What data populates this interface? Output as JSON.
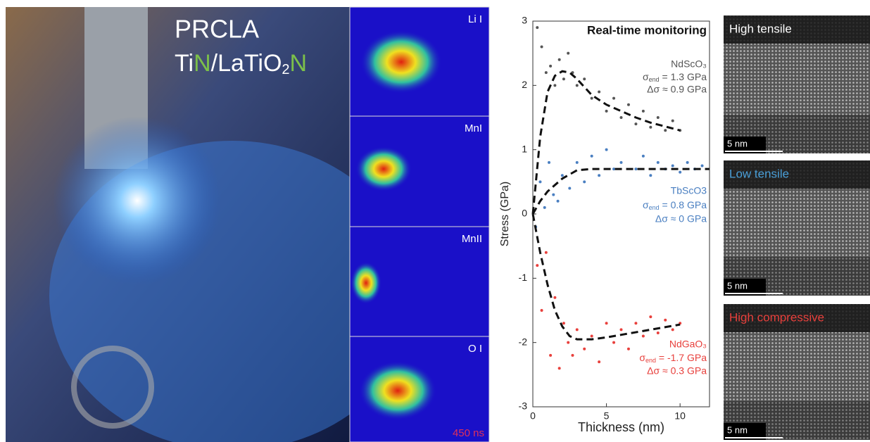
{
  "photo": {
    "line1": "PRCLA",
    "line2": [
      "Ti",
      "N",
      "/LaTiO",
      "2",
      "N"
    ]
  },
  "plumes": {
    "labels": [
      "Li I",
      "MnI",
      "MnII",
      "O I"
    ],
    "time": "450 ns"
  },
  "tem": {
    "labels": [
      "High tensile",
      "Low tensile",
      "High compressive"
    ],
    "scale": [
      "5 nm",
      "5 nm",
      "5 nm"
    ]
  },
  "chart_data": {
    "type": "scatter",
    "title": "Real-time monitoring",
    "x_label": "Thickness (nm)",
    "y_label": "Stress (GPa)",
    "xlim": [
      0,
      12
    ],
    "ylim": [
      -3,
      3
    ],
    "xticks": [
      0,
      5,
      10
    ],
    "yticks": [
      -3,
      -2,
      -1,
      0,
      1,
      2,
      3
    ],
    "series": [
      {
        "name": "NdScO₃",
        "color": "#555555",
        "x": [
          0.3,
          0.6,
          0.9,
          1.2,
          1.5,
          1.8,
          2.1,
          2.4,
          2.7,
          3.0,
          3.5,
          4,
          4.5,
          5,
          5.5,
          6,
          6.5,
          7,
          7.5,
          8,
          8.5,
          9,
          9.5,
          10
        ],
        "values": [
          2.9,
          2.6,
          2.2,
          2.3,
          2.0,
          2.4,
          2.1,
          2.5,
          2.2,
          2.0,
          2.1,
          1.8,
          1.9,
          1.6,
          1.8,
          1.5,
          1.7,
          1.4,
          1.6,
          1.35,
          1.5,
          1.3,
          1.45,
          1.3
        ],
        "fit_x": [
          0,
          0.5,
          1,
          1.5,
          2,
          2.5,
          3,
          4,
          5,
          6,
          7,
          8,
          9,
          10
        ],
        "fit_values": [
          0,
          1.2,
          1.9,
          2.15,
          2.22,
          2.2,
          2.1,
          1.85,
          1.7,
          1.6,
          1.5,
          1.42,
          1.36,
          1.3
        ],
        "annotation": [
          {
            "symbol": "σ",
            "sub": "end",
            "rest": " = 1.3 GPa"
          },
          "Δσ ≈ 0.9 GPa"
        ]
      },
      {
        "name": "TbScO3",
        "color": "#4a7fc1",
        "x": [
          0.2,
          0.5,
          0.8,
          1.1,
          1.4,
          1.7,
          2,
          2.5,
          3,
          3.5,
          4,
          4.5,
          5,
          5.5,
          6,
          7,
          7.5,
          8,
          8.5,
          9,
          9.5,
          10,
          10.5,
          11,
          11.5
        ],
        "values": [
          -0.2,
          0.5,
          0.1,
          0.8,
          0.3,
          0.2,
          0.6,
          0.4,
          0.8,
          0.5,
          0.9,
          0.6,
          1.0,
          0.7,
          0.8,
          0.7,
          0.9,
          0.6,
          0.8,
          0.7,
          0.75,
          0.65,
          0.8,
          0.7,
          0.75
        ],
        "fit_x": [
          0,
          0.5,
          1,
          2,
          3,
          4,
          5,
          6,
          8,
          10,
          12
        ],
        "fit_values": [
          0,
          0.2,
          0.35,
          0.55,
          0.68,
          0.7,
          0.7,
          0.7,
          0.7,
          0.7,
          0.7
        ],
        "annotation": [
          {
            "symbol": "σ",
            "sub": "end",
            "rest": " = 0.8 GPa"
          },
          "Δσ ≈ 0 GPa"
        ]
      },
      {
        "name": "NdGaO₃",
        "color": "#e8403c",
        "x": [
          0.3,
          0.6,
          0.9,
          1.2,
          1.5,
          1.8,
          2.1,
          2.4,
          2.7,
          3,
          3.5,
          4,
          4.5,
          5,
          5.5,
          6,
          6.5,
          7,
          7.5,
          8,
          8.5,
          9,
          9.5,
          10
        ],
        "values": [
          -0.8,
          -1.5,
          -0.6,
          -2.2,
          -1.3,
          -2.4,
          -1.7,
          -2.0,
          -2.2,
          -1.8,
          -2.1,
          -1.9,
          -2.3,
          -1.7,
          -2.0,
          -1.8,
          -2.1,
          -1.7,
          -1.9,
          -1.6,
          -1.85,
          -1.65,
          -1.8,
          -1.7
        ],
        "fit_x": [
          0,
          0.5,
          1,
          1.5,
          2,
          2.5,
          3,
          4,
          5,
          6,
          7,
          8,
          9,
          10
        ],
        "fit_values": [
          0,
          -0.6,
          -1.1,
          -1.5,
          -1.75,
          -1.9,
          -1.95,
          -1.95,
          -1.92,
          -1.88,
          -1.84,
          -1.8,
          -1.76,
          -1.72
        ],
        "annotation": [
          {
            "symbol": "σ",
            "sub": "end",
            "rest": " = -1.7 GPa"
          },
          "Δσ ≈ 0.3 GPa"
        ]
      }
    ]
  }
}
